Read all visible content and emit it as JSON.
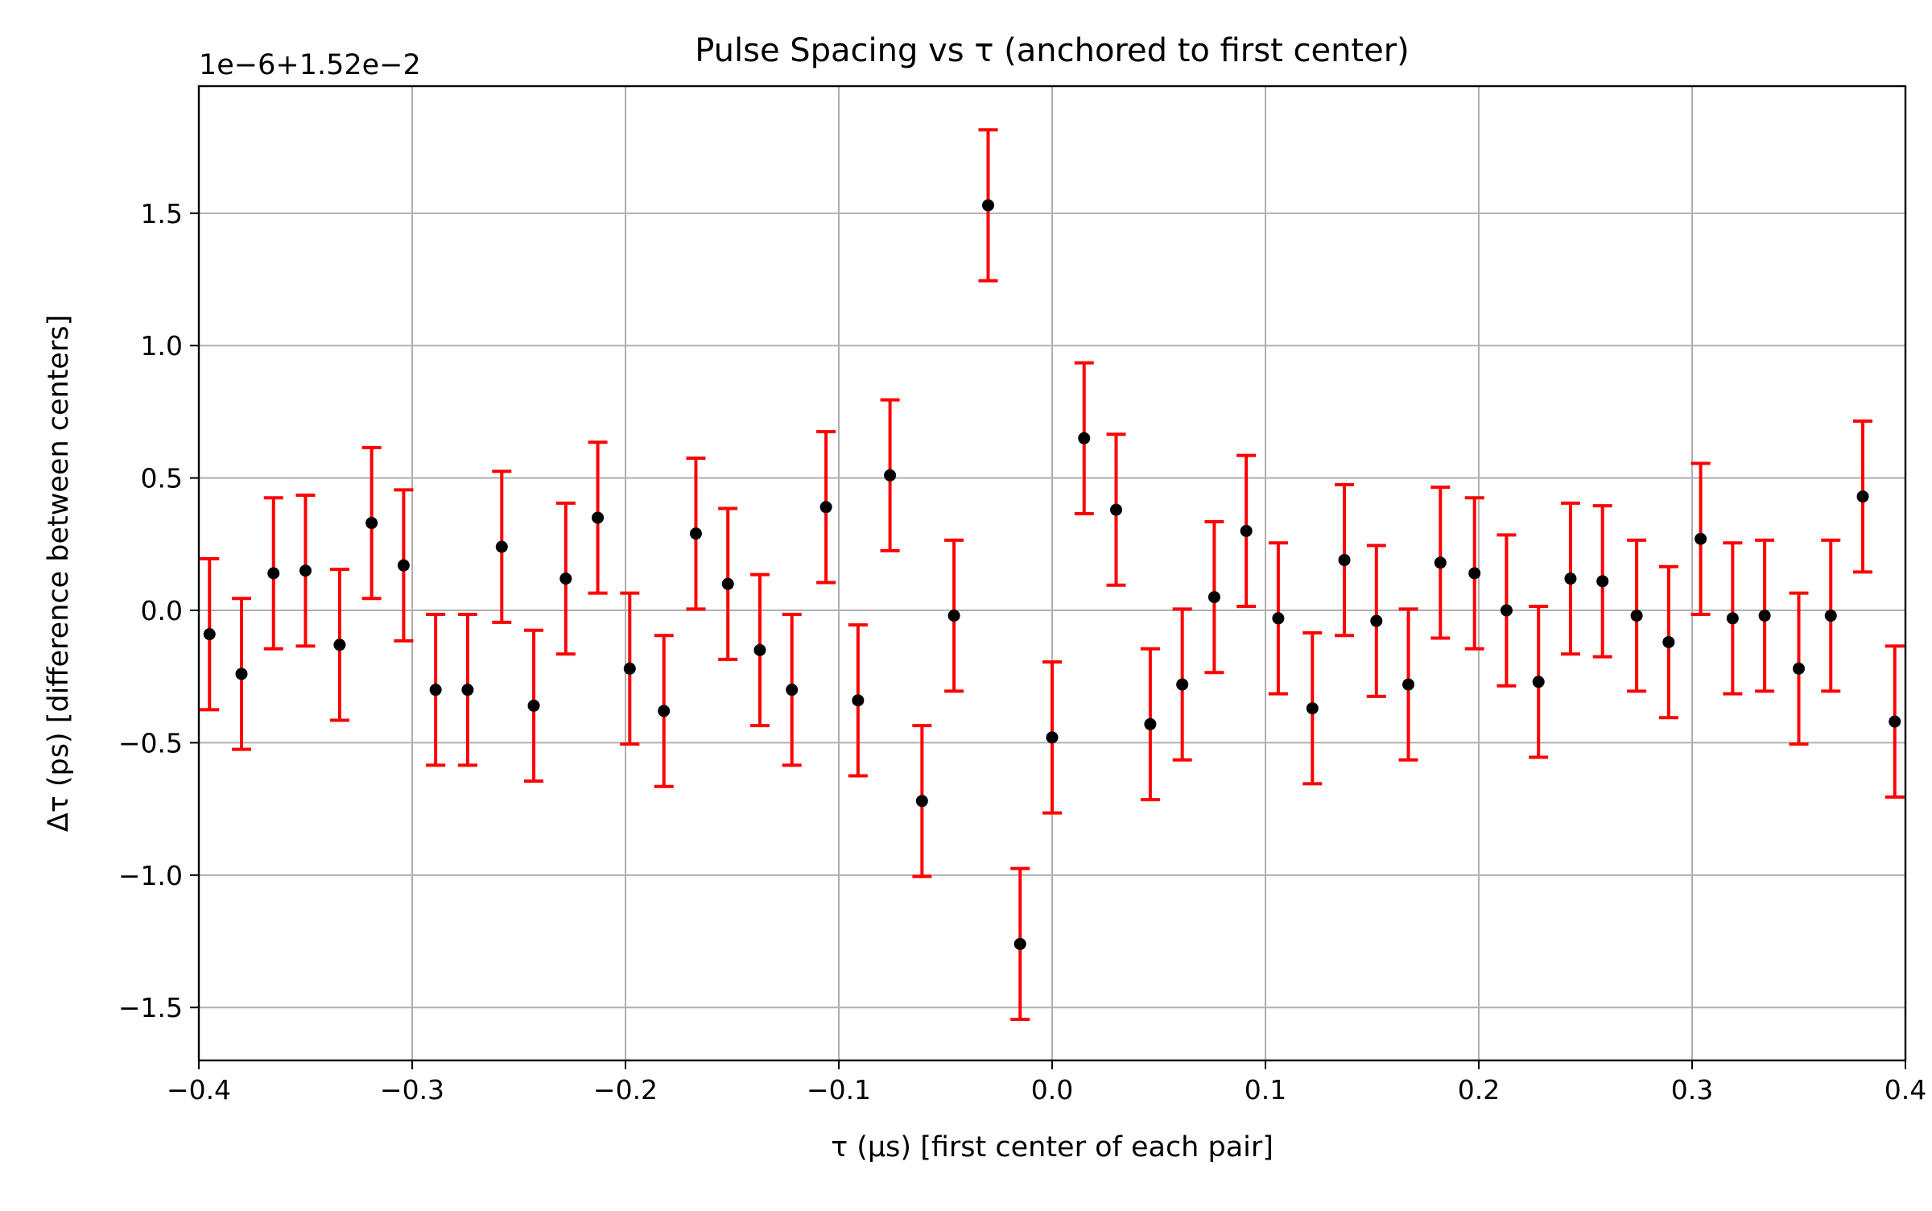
{
  "chart_data": {
    "type": "scatter",
    "title": "Pulse Spacing vs τ (anchored to first center)",
    "xlabel": "τ (μs) [first center of each pair]",
    "ylabel": "Δτ (ps) [difference between centers]",
    "offset_text": "1e−6+1.52e−2",
    "xlim": [
      -0.4,
      0.4
    ],
    "ylim": [
      -1.7,
      1.98
    ],
    "grid": true,
    "x_ticks": [
      -0.4,
      -0.3,
      -0.2,
      -0.1,
      0.0,
      0.1,
      0.2,
      0.3,
      0.4
    ],
    "x_tick_labels": [
      "−0.4",
      "−0.3",
      "−0.2",
      "−0.1",
      "0.0",
      "0.1",
      "0.2",
      "0.3",
      "0.4"
    ],
    "y_ticks": [
      -1.5,
      -1.0,
      -0.5,
      0.0,
      0.5,
      1.0,
      1.5
    ],
    "y_tick_labels": [
      "−1.5",
      "−1.0",
      "−0.5",
      "0.0",
      "0.5",
      "1.0",
      "1.5"
    ],
    "colors": {
      "points": "#000000",
      "errorbars": "#ff0000",
      "grid": "#b0b0b0"
    },
    "series": [
      {
        "x": [
          -0.395,
          -0.38,
          -0.365,
          -0.35,
          -0.334,
          -0.319,
          -0.304,
          -0.289,
          -0.274,
          -0.258,
          -0.243,
          -0.228,
          -0.213,
          -0.198,
          -0.182,
          -0.167,
          -0.152,
          -0.137,
          -0.122,
          -0.106,
          -0.091,
          -0.076,
          -0.061,
          -0.046,
          -0.03,
          -0.015,
          0.0,
          0.015,
          0.03,
          0.046,
          0.061,
          0.076,
          0.091,
          0.106,
          0.122,
          0.137,
          0.152,
          0.167,
          0.182,
          0.198,
          0.213,
          0.228,
          0.243,
          0.258,
          0.274,
          0.289,
          0.304,
          0.319,
          0.334,
          0.35,
          0.365,
          0.38,
          0.395
        ],
        "y": [
          -0.09,
          -0.24,
          0.14,
          0.15,
          -0.13,
          0.33,
          0.17,
          -0.3,
          -0.3,
          0.24,
          -0.36,
          0.12,
          0.35,
          -0.22,
          -0.38,
          0.29,
          0.1,
          -0.15,
          -0.3,
          0.39,
          -0.34,
          0.51,
          -0.72,
          -0.02,
          1.53,
          -1.26,
          -0.48,
          0.65,
          0.38,
          -0.43,
          -0.28,
          0.05,
          0.3,
          -0.03,
          -0.37,
          0.19,
          -0.04,
          -0.28,
          0.18,
          0.14,
          0.0,
          -0.27,
          0.12,
          0.11,
          -0.02,
          -0.12,
          0.27,
          -0.03,
          -0.02,
          -0.22,
          -0.02,
          0.43,
          -0.42
        ],
        "yerr": 0.285
      }
    ]
  }
}
